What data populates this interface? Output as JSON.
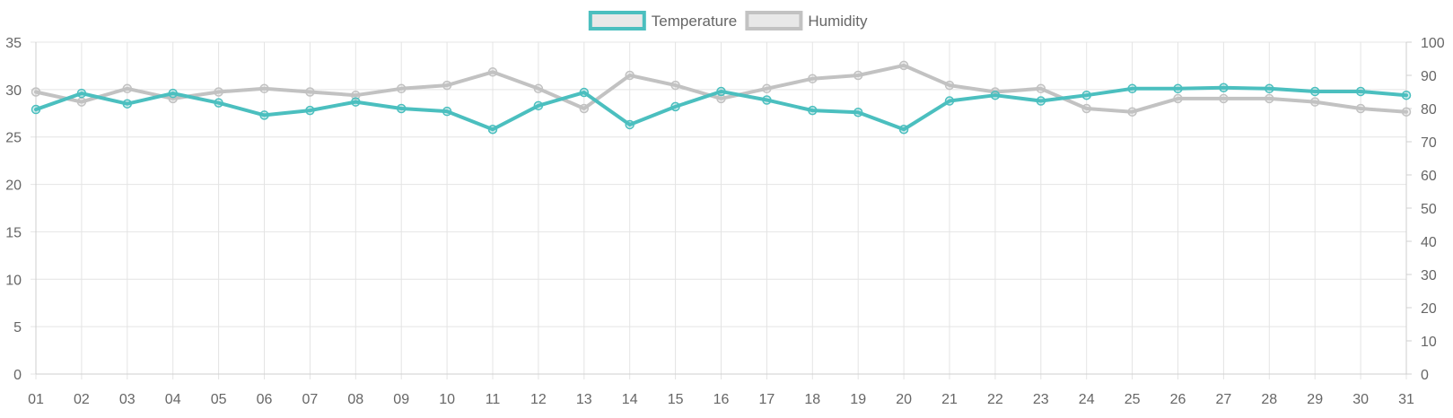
{
  "chart_data": {
    "type": "line",
    "title": "",
    "xlabel": "",
    "ylabel": "",
    "y2label": "",
    "legend_position": "top-center",
    "grid": true,
    "categories": [
      "01",
      "02",
      "03",
      "04",
      "05",
      "06",
      "07",
      "08",
      "09",
      "10",
      "11",
      "12",
      "13",
      "14",
      "15",
      "16",
      "17",
      "18",
      "19",
      "20",
      "21",
      "22",
      "23",
      "24",
      "25",
      "26",
      "27",
      "28",
      "29",
      "30",
      "31"
    ],
    "y_left": {
      "min": 0,
      "max": 35,
      "ticks": [
        0,
        5,
        10,
        15,
        20,
        25,
        30,
        35
      ]
    },
    "y_right": {
      "min": 0,
      "max": 100,
      "ticks": [
        0,
        10,
        20,
        30,
        40,
        50,
        60,
        70,
        80,
        90,
        100
      ]
    },
    "series": [
      {
        "name": "Temperature",
        "axis": "left",
        "color": "#4bbfbf",
        "values": [
          27.9,
          29.6,
          28.5,
          29.6,
          28.6,
          27.3,
          27.8,
          28.7,
          28.0,
          27.7,
          25.8,
          28.3,
          29.7,
          26.3,
          28.2,
          29.8,
          28.9,
          27.8,
          27.6,
          25.8,
          28.8,
          29.4,
          28.8,
          29.4,
          30.1,
          30.1,
          30.2,
          30.1,
          29.8,
          29.8,
          29.4
        ]
      },
      {
        "name": "Humidity",
        "axis": "right",
        "color": "#c2c2c2",
        "values": [
          85,
          82,
          86,
          83,
          85,
          86,
          85,
          84,
          86,
          87,
          91,
          86,
          80,
          90,
          87,
          83,
          86,
          89,
          90,
          93,
          87,
          85,
          86,
          80,
          79,
          83,
          83,
          83,
          82,
          80,
          79
        ]
      }
    ]
  }
}
